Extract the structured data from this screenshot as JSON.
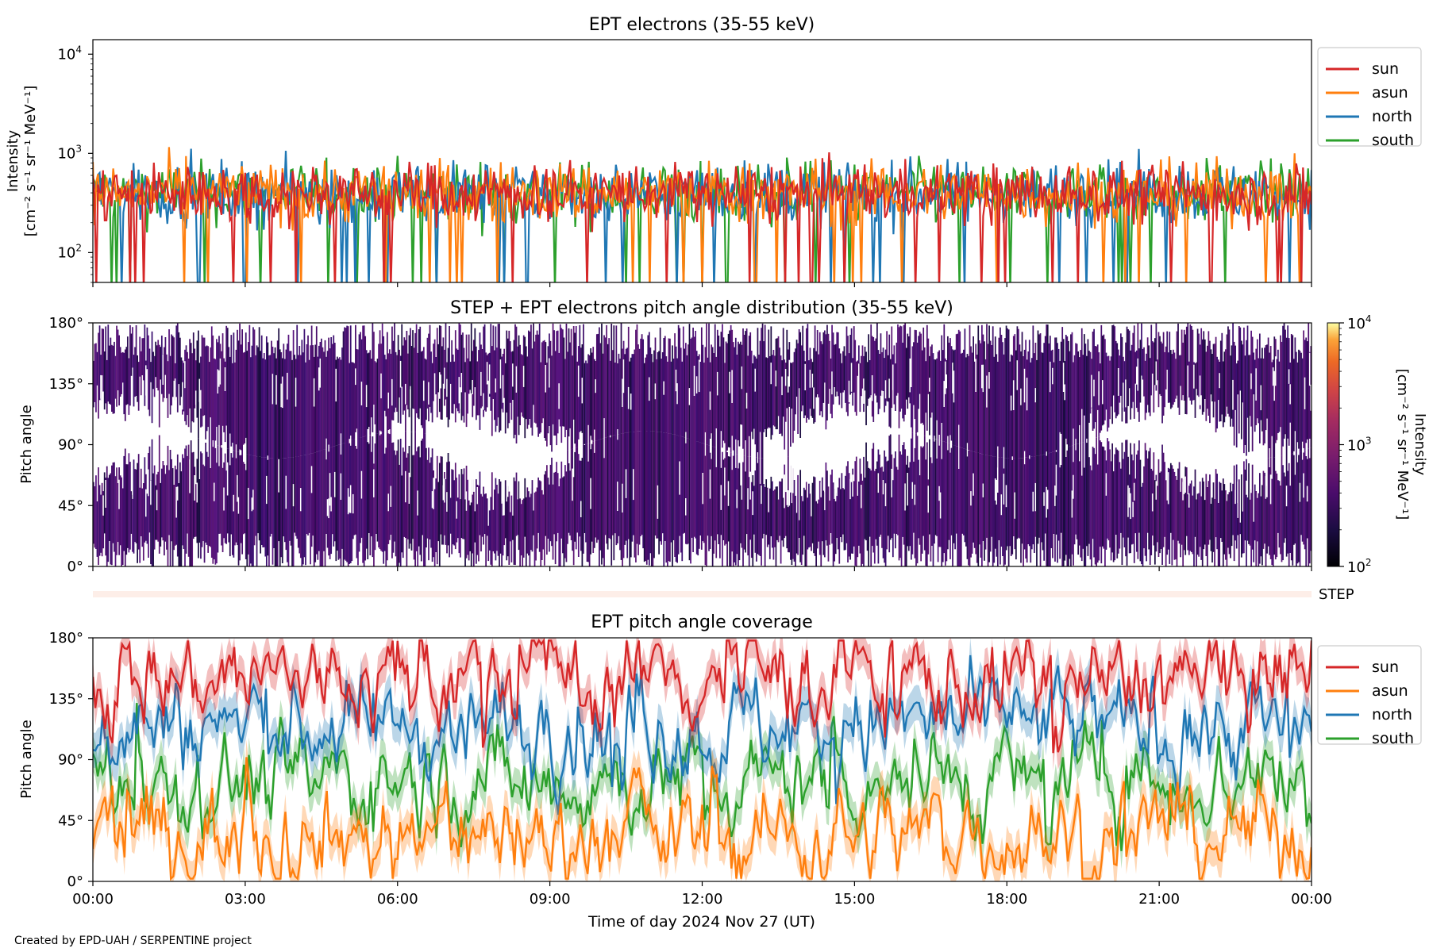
{
  "colors": {
    "sun": "#d62728",
    "asun": "#ff7f0e",
    "north": "#1f77b4",
    "south": "#2ca02c",
    "step": "#fdeee8"
  },
  "footer": {
    "credit": "Created by EPD-UAH / SERPENTINE project"
  },
  "chart_data": [
    {
      "type": "line",
      "title": "EPT electrons (35-55 keV)",
      "ylabel_lines": [
        "Intensity",
        "[cm⁻² s⁻¹ sr⁻¹ MeV⁻¹]"
      ],
      "yscale": "log",
      "ylim": [
        50,
        14000
      ],
      "yticks": [
        {
          "value": 100,
          "base": "10",
          "exp": "2"
        },
        {
          "value": 1000,
          "base": "10",
          "exp": "3"
        },
        {
          "value": 10000,
          "base": "10",
          "exp": "4"
        }
      ],
      "x_hours_range": [
        0,
        24
      ],
      "legend": "outside-right",
      "series": [
        {
          "name": "sun",
          "typical": [
            200,
            800
          ]
        },
        {
          "name": "asun",
          "typical": [
            200,
            800
          ]
        },
        {
          "name": "north",
          "typical": [
            200,
            800
          ]
        },
        {
          "name": "south",
          "typical": [
            200,
            800
          ]
        }
      ]
    },
    {
      "type": "heatmap",
      "title": "STEP + EPT electrons pitch angle distribution (35-55 keV)",
      "ylabel": "Pitch angle",
      "ylim": [
        0,
        180
      ],
      "yticks": [
        "0°",
        "45°",
        "90°",
        "135°",
        "180°"
      ],
      "colorbar": {
        "label_lines": [
          "Intensity",
          "[cm⁻² s⁻¹ sr⁻¹ MeV⁻¹]"
        ],
        "scale": "log",
        "range": [
          100,
          10000
        ],
        "ticks": [
          {
            "base": "10",
            "exp": "2"
          },
          {
            "base": "10",
            "exp": "3"
          },
          {
            "base": "10",
            "exp": "4"
          }
        ]
      },
      "step_label": "STEP"
    },
    {
      "type": "line",
      "title": "EPT pitch angle coverage",
      "ylabel": "Pitch angle",
      "ylim": [
        0,
        180
      ],
      "yticks": [
        "0°",
        "45°",
        "90°",
        "135°",
        "180°"
      ],
      "legend": "outside-right",
      "xlabel": "Time of day 2024 Nov 27 (UT)",
      "xticks": [
        "00:00",
        "03:00",
        "06:00",
        "09:00",
        "12:00",
        "15:00",
        "18:00",
        "21:00",
        "00:00"
      ],
      "series": [
        {
          "name": "sun",
          "mean": 150
        },
        {
          "name": "asun",
          "mean": 35
        },
        {
          "name": "north",
          "mean": 115
        },
        {
          "name": "south",
          "mean": 75
        }
      ]
    }
  ]
}
